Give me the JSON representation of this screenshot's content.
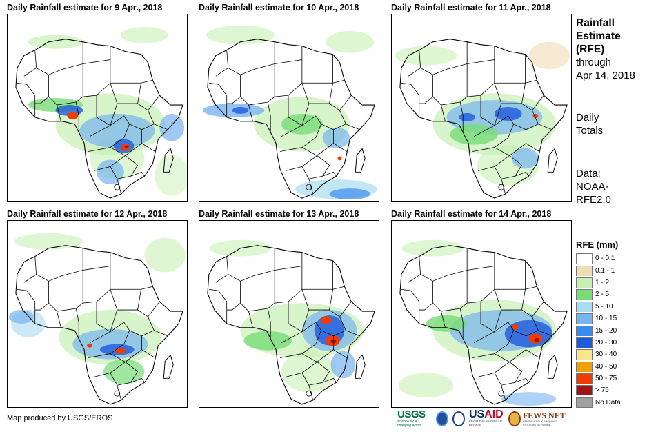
{
  "panels": [
    {
      "title": "Daily Rainfall estimate for 9 Apr., 2018",
      "date": "9 Apr., 2018",
      "focus": "central"
    },
    {
      "title": "Daily Rainfall estimate for 10 Apr., 2018",
      "date": "10 Apr., 2018",
      "focus": "west"
    },
    {
      "title": "Daily Rainfall estimate for 11 Apr., 2018",
      "date": "11 Apr., 2018",
      "focus": "east"
    },
    {
      "title": "Daily Rainfall estimate for 12 Apr., 2018",
      "date": "12 Apr., 2018",
      "focus": "central-south"
    },
    {
      "title": "Daily Rainfall estimate for 13 Apr., 2018",
      "date": "13 Apr., 2018",
      "focus": "great-lakes"
    },
    {
      "title": "Daily Rainfall estimate for 14 Apr., 2018",
      "date": "14 Apr., 2018",
      "focus": "east-coast"
    }
  ],
  "sidebar": {
    "title_line1": "Rainfall",
    "title_line2": "Estimate",
    "title_line3": "(RFE)",
    "through_label": "through",
    "through_date": "Apr 14, 2018",
    "totals_line1": "Daily",
    "totals_line2": "Totals",
    "data_label": "Data:",
    "data_source_line1": "NOAA-",
    "data_source_line2": "RFE2.0"
  },
  "legend": {
    "title": "RFE (mm)",
    "items": [
      {
        "label": "0 - 0.1",
        "color": "#ffffff"
      },
      {
        "label": "0.1 - 1",
        "color": "#f0dcb4"
      },
      {
        "label": "1 - 2",
        "color": "#c8f0b4"
      },
      {
        "label": "2 - 5",
        "color": "#78dc78"
      },
      {
        "label": "5 - 10",
        "color": "#aadcf0"
      },
      {
        "label": "10 - 15",
        "color": "#78b4f0"
      },
      {
        "label": "15 - 20",
        "color": "#3c8cf0"
      },
      {
        "label": "20 - 30",
        "color": "#1e5adc"
      },
      {
        "label": "30 - 40",
        "color": "#f8e68c"
      },
      {
        "label": "40 - 50",
        "color": "#f0a000"
      },
      {
        "label": "50 - 75",
        "color": "#f03c00"
      },
      {
        "label": "> 75",
        "color": "#a01414"
      },
      {
        "label": "No Data",
        "color": "#a0a0a0"
      }
    ]
  },
  "credit": "Map produced by USGS/EROS",
  "logos": {
    "usgs": "USGS",
    "usgs_tagline": "science for a changing world",
    "usaid_prefix": "US",
    "usaid_suffix": "AID",
    "usaid_tagline": "FROM THE AMERICAN PEOPLE",
    "fews": "FEWS NET",
    "fews_tagline": "FAMINE EARLY WARNING SYSTEMS NETWORK"
  }
}
